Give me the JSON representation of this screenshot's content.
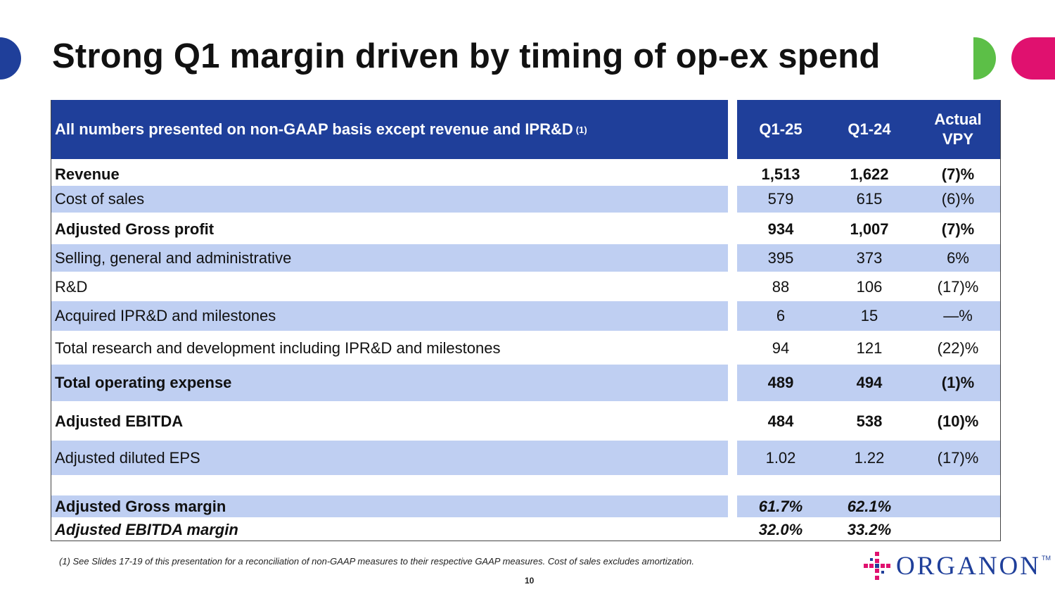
{
  "slide": {
    "title": "Strong Q1 margin driven by timing of op-ex spend",
    "page_number": "10",
    "footnote": "(1) See Slides 17-19 of this presentation for a reconciliation of non-GAAP measures to their respective GAAP measures. Cost of sales excludes amortization.",
    "logo_text": "ORGANON",
    "logo_tm": "TM",
    "colors": {
      "brand_blue": "#1f3f9a",
      "row_shade": "#bfcff2",
      "green": "#5cbf47",
      "pink": "#e0116f"
    }
  },
  "table": {
    "header": {
      "label": "All numbers presented on non-GAAP basis except revenue and IPR&D",
      "label_sup": "(1)",
      "col1": "Q1-25",
      "col2": "Q1-24",
      "col3_line1": "Actual",
      "col3_line2": "VPY"
    },
    "rows": [
      {
        "label": "Revenue",
        "q125": "1,513",
        "q124": "1,622",
        "vpy": "(7)%"
      },
      {
        "label": "Cost of sales",
        "q125": "579",
        "q124": "615",
        "vpy": "(6)%"
      },
      {
        "label": "Adjusted Gross profit",
        "q125": "934",
        "q124": "1,007",
        "vpy": "(7)%"
      },
      {
        "label": "Selling, general and administrative",
        "q125": "395",
        "q124": "373",
        "vpy": "6%"
      },
      {
        "label": "R&D",
        "q125": "88",
        "q124": "106",
        "vpy": "(17)%"
      },
      {
        "label": "Acquired IPR&D and milestones",
        "q125": "6",
        "q124": "15",
        "vpy": "—%"
      },
      {
        "label": "Total research and development including IPR&D and milestones",
        "q125": "94",
        "q124": "121",
        "vpy": "(22)%"
      },
      {
        "label": "Total operating expense",
        "q125": "489",
        "q124": "494",
        "vpy": "(1)%"
      },
      {
        "label": "Adjusted EBITDA",
        "q125": "484",
        "q124": "538",
        "vpy": "(10)%"
      },
      {
        "label": "Adjusted diluted EPS",
        "q125": "1.02",
        "q124": "1.22",
        "vpy": "(17)%"
      },
      {
        "label": "Adjusted Gross margin",
        "q125": "61.7%",
        "q124": "62.1%",
        "vpy": ""
      },
      {
        "label": "Adjusted EBITDA margin",
        "q125": "32.0%",
        "q124": "33.2%",
        "vpy": ""
      }
    ]
  }
}
